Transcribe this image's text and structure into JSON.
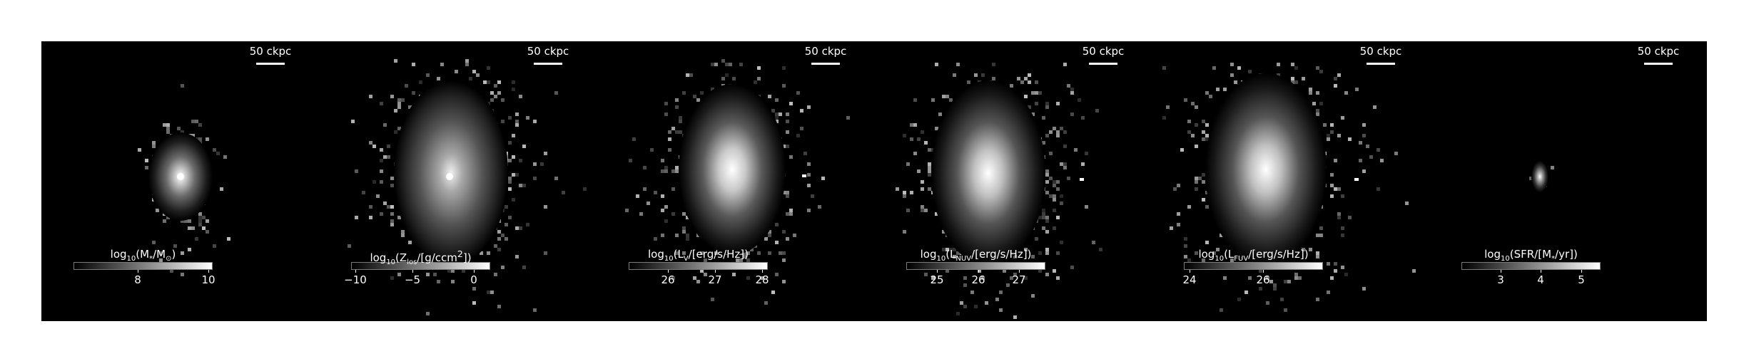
{
  "figure": {
    "scalebar_label": "50 ckpc",
    "panels": [
      {
        "id": "stellar-mass",
        "colorbar": {
          "pre": "log",
          "base_sub": "10",
          "body": "(M",
          "var_sub": "*",
          "tail": "/M",
          "unit_sub": "⊙",
          "end": ")"
        },
        "ticks": [
          {
            "label": "8",
            "pos": 0.46
          },
          {
            "label": "10",
            "pos": 0.97
          }
        ]
      },
      {
        "id": "metallicity-los",
        "colorbar": {
          "pre": "log",
          "base_sub": "10",
          "body": "(Z",
          "var_sub": "los",
          "tail": "/[g/ccm",
          "unit_sub": "",
          "sup": "2",
          "end": "])"
        },
        "ticks": [
          {
            "label": "−10",
            "pos": 0.03
          },
          {
            "label": "−5",
            "pos": 0.44
          },
          {
            "label": "0",
            "pos": 0.88
          }
        ]
      },
      {
        "id": "luminosity-v",
        "colorbar": {
          "pre": "log",
          "base_sub": "10",
          "body": "(L",
          "var_sub": "V",
          "tail": "/[erg/s/Hz])",
          "unit_sub": "",
          "end": ""
        },
        "ticks": [
          {
            "label": "26",
            "pos": 0.28
          },
          {
            "label": "27",
            "pos": 0.62
          },
          {
            "label": "28",
            "pos": 0.96
          }
        ]
      },
      {
        "id": "luminosity-nuv",
        "colorbar": {
          "pre": "log",
          "base_sub": "10",
          "body": "(L",
          "var_sub": "NUV",
          "tail": "/[erg/s/Hz])",
          "unit_sub": "",
          "end": ""
        },
        "ticks": [
          {
            "label": "25",
            "pos": 0.22
          },
          {
            "label": "26",
            "pos": 0.52
          },
          {
            "label": "27",
            "pos": 0.81
          }
        ]
      },
      {
        "id": "luminosity-fuv",
        "colorbar": {
          "pre": "log",
          "base_sub": "10",
          "body": "(L",
          "var_sub": "FUV",
          "tail": "/[erg/s/Hz])",
          "unit_sub": "",
          "end": ""
        },
        "ticks": [
          {
            "label": "24",
            "pos": 0.04
          },
          {
            "label": "26",
            "pos": 0.57
          }
        ]
      },
      {
        "id": "star-formation-rate",
        "colorbar": {
          "pre": "log",
          "base_sub": "10",
          "body": "(SFR/[M",
          "var_sub": "*",
          "tail": "/yr])",
          "unit_sub": "",
          "end": ""
        },
        "ticks": [
          {
            "label": "3",
            "pos": 0.28
          },
          {
            "label": "4",
            "pos": 0.57
          },
          {
            "label": "5",
            "pos": 0.86
          }
        ]
      }
    ]
  }
}
